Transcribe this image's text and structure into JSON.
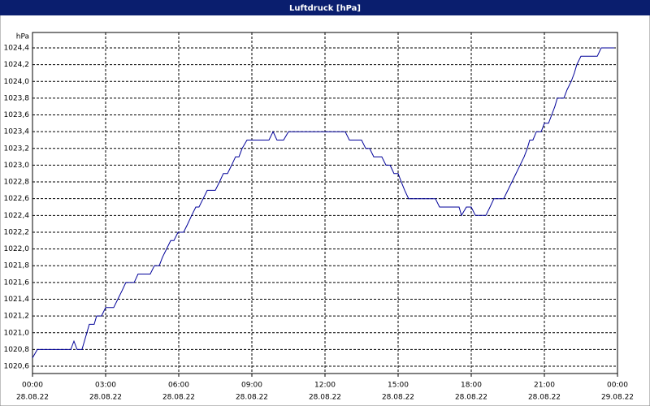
{
  "chart_data": {
    "type": "line",
    "title": "Luftdruck [hPa]",
    "y_label": "hPa",
    "x": [
      0,
      0.2,
      1.57,
      1.7,
      1.83,
      2.03,
      2.13,
      2.23,
      2.33,
      2.53,
      2.63,
      2.83,
      3,
      3.33,
      3.5,
      3.67,
      3.83,
      4.17,
      4.33,
      4.83,
      5,
      5.2,
      5.33,
      5.5,
      5.67,
      5.8,
      5.97,
      6.2,
      6.37,
      6.53,
      6.7,
      6.83,
      7,
      7.17,
      7.5,
      7.67,
      7.83,
      8,
      8.17,
      8.33,
      8.47,
      8.6,
      8.8,
      9.7,
      9.87,
      10.03,
      10.3,
      10.5,
      12.83,
      13,
      13.5,
      13.67,
      13.83,
      14,
      14.33,
      14.5,
      14.67,
      14.83,
      15,
      15.13,
      15.27,
      15.43,
      16.53,
      16.7,
      17.5,
      17.6,
      17.8,
      18,
      18.17,
      18.6,
      18.77,
      18.93,
      19.33,
      19.5,
      20.17,
      20.3,
      20.4,
      20.53,
      20.67,
      20.87,
      21,
      21.17,
      21.3,
      21.43,
      21.53,
      21.8,
      21.93,
      22.1,
      22.23,
      22.33,
      22.5,
      23.17,
      23.33,
      23.87
    ],
    "series": [
      {
        "color": "#000099",
        "values": [
          1020.7,
          1020.8,
          1020.8,
          1020.9,
          1020.8,
          1020.8,
          1020.9,
          1021.0,
          1021.1,
          1021.1,
          1021.2,
          1021.2,
          1021.3,
          1021.3,
          1021.4,
          1021.5,
          1021.6,
          1021.6,
          1021.7,
          1021.7,
          1021.8,
          1021.8,
          1021.9,
          1022.0,
          1022.1,
          1022.1,
          1022.2,
          1022.2,
          1022.3,
          1022.4,
          1022.5,
          1022.5,
          1022.6,
          1022.7,
          1022.7,
          1022.8,
          1022.9,
          1022.9,
          1023.0,
          1023.1,
          1023.1,
          1023.2,
          1023.3,
          1023.3,
          1023.4,
          1023.3,
          1023.3,
          1023.4,
          1023.4,
          1023.3,
          1023.3,
          1023.2,
          1023.2,
          1023.1,
          1023.1,
          1023.0,
          1023.0,
          1022.9,
          1022.9,
          1022.8,
          1022.7,
          1022.6,
          1022.6,
          1022.5,
          1022.5,
          1022.4,
          1022.5,
          1022.5,
          1022.4,
          1022.4,
          1022.5,
          1022.6,
          1022.6,
          1022.7,
          1023.1,
          1023.2,
          1023.3,
          1023.3,
          1023.4,
          1023.4,
          1023.5,
          1023.5,
          1023.6,
          1023.7,
          1023.8,
          1023.8,
          1023.9,
          1024.0,
          1024.1,
          1024.2,
          1024.3,
          1024.3,
          1024.4,
          1024.4
        ]
      }
    ],
    "xlim": [
      0,
      24
    ],
    "xticks": [
      {
        "value": 0,
        "label": "00:00"
      },
      {
        "value": 3,
        "label": "03:00"
      },
      {
        "value": 6,
        "label": "06:00"
      },
      {
        "value": 9,
        "label": "09:00"
      },
      {
        "value": 12,
        "label": "12:00"
      },
      {
        "value": 15,
        "label": "15:00"
      },
      {
        "value": 18,
        "label": "18:00"
      },
      {
        "value": 21,
        "label": "21:00"
      },
      {
        "value": 24,
        "label": "00:00"
      }
    ],
    "xtick_dates": [
      "28.08.22",
      "28.08.22",
      "28.08.22",
      "28.08.22",
      "28.08.22",
      "28.08.22",
      "28.08.22",
      "28.08.22",
      "29.08.22"
    ],
    "ylim": [
      1020.513,
      1024.584
    ],
    "yticks": [
      {
        "value": 1020.6,
        "label": "1020,6"
      },
      {
        "value": 1020.8,
        "label": "1020,8"
      },
      {
        "value": 1021.0,
        "label": "1021,0"
      },
      {
        "value": 1021.2,
        "label": "1021,2"
      },
      {
        "value": 1021.4,
        "label": "1021,4"
      },
      {
        "value": 1021.6,
        "label": "1021,6"
      },
      {
        "value": 1021.8,
        "label": "1021,8"
      },
      {
        "value": 1022.0,
        "label": "1022,0"
      },
      {
        "value": 1022.2,
        "label": "1022,2"
      },
      {
        "value": 1022.4,
        "label": "1022,4"
      },
      {
        "value": 1022.6,
        "label": "1022,6"
      },
      {
        "value": 1022.8,
        "label": "1022,8"
      },
      {
        "value": 1023.0,
        "label": "1023,0"
      },
      {
        "value": 1023.2,
        "label": "1023,2"
      },
      {
        "value": 1023.4,
        "label": "1023,4"
      },
      {
        "value": 1023.6,
        "label": "1023,6"
      },
      {
        "value": 1023.8,
        "label": "1023,8"
      },
      {
        "value": 1024.0,
        "label": "1024,0"
      },
      {
        "value": 1024.2,
        "label": "1024,2"
      },
      {
        "value": 1024.4,
        "label": "1024,4"
      }
    ],
    "grid": true
  }
}
